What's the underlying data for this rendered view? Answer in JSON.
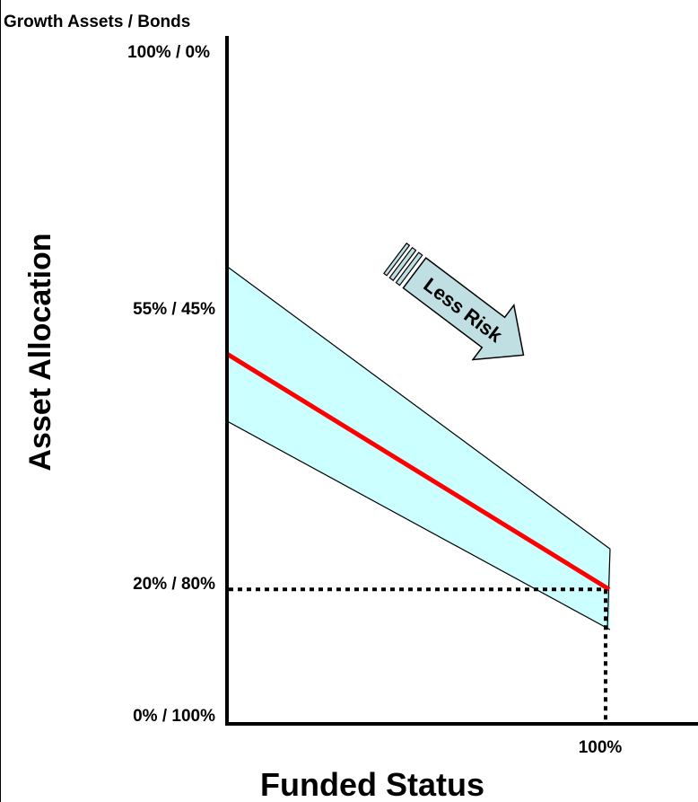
{
  "chart_data": {
    "type": "line",
    "y_unit_label": "Growth Assets / Bonds",
    "xlabel": "Funded Status",
    "ylabel": "Asset Allocation",
    "ylim": [
      0,
      100
    ],
    "y_ticks": [
      {
        "value": 100,
        "label": "100% / 0%"
      },
      {
        "value": 55,
        "label": "55% / 45%"
      },
      {
        "value": 20,
        "label": "20% / 80%"
      },
      {
        "value": 0,
        "label": "0% / 100%"
      }
    ],
    "x_ticks": [
      {
        "value": 100,
        "label": "100%"
      }
    ],
    "series": [
      {
        "role": "glide-path",
        "color": "#ff0000",
        "start": 55,
        "end": 20
      },
      {
        "role": "band-upper",
        "color": "#000000",
        "start": 68,
        "end": 26
      },
      {
        "role": "band-lower",
        "color": "#000000",
        "start": 45,
        "end": 14
      }
    ],
    "band_fill": "#ccffff",
    "target_point": {
      "x": 100,
      "y": 20
    },
    "annotation": {
      "text": "Less Risk",
      "fill": "#bfdfe3"
    }
  }
}
